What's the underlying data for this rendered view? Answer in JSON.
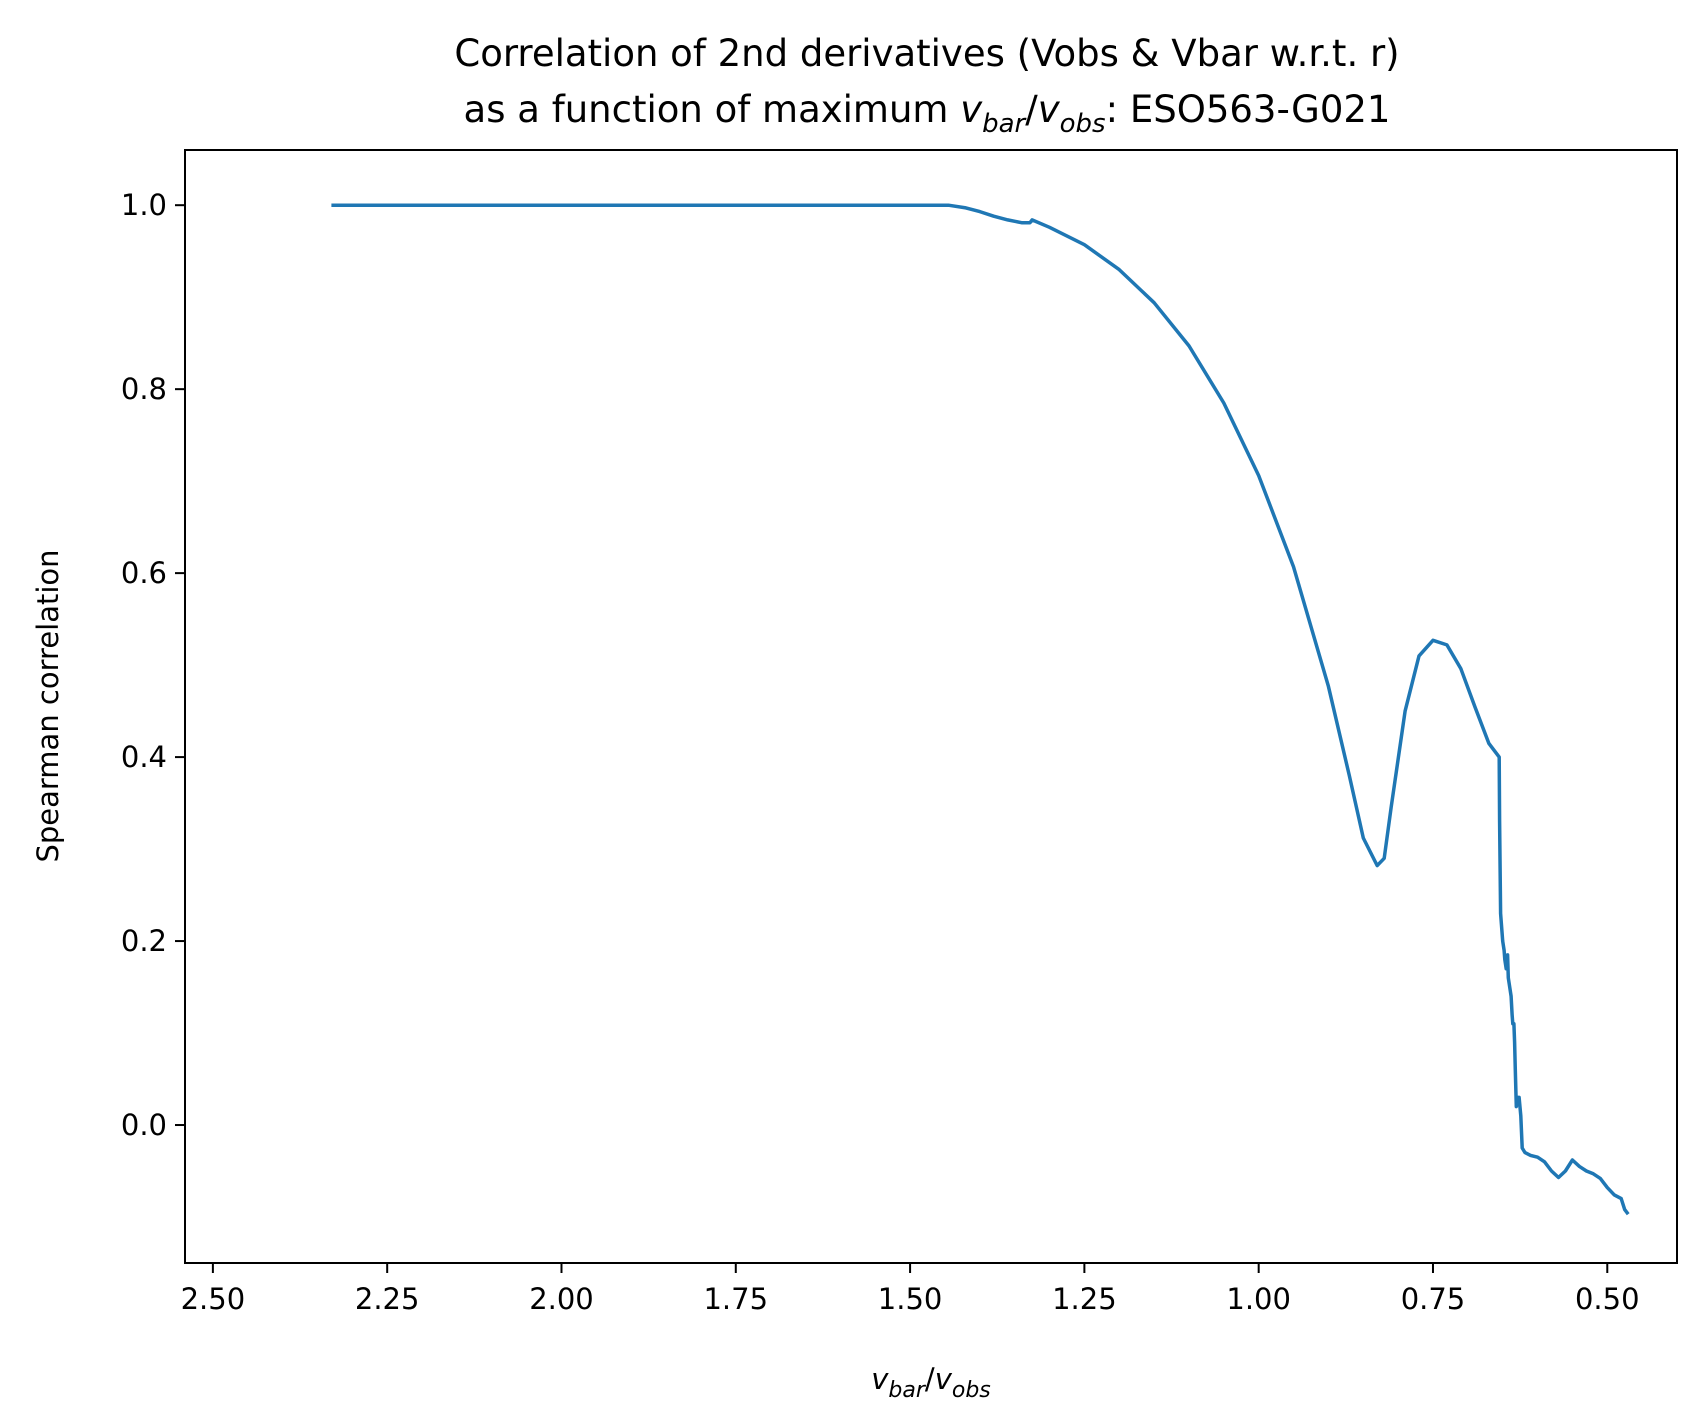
{
  "title": {
    "line1": "Correlation of 2nd derivatives (Vobs & Vbar w.r.t. r)",
    "line2_prefix": "as a function of maximum ",
    "line2_suffix": ": ESO563-G021"
  },
  "chart_data": {
    "type": "line",
    "title": "Correlation of 2nd derivatives (Vobs & Vbar w.r.t. r) as a function of maximum v_bar/v_obs: ESO563-G021",
    "xlabel": "v_bar/v_obs",
    "ylabel": "Spearman correlation",
    "xlim": [
      2.54,
      0.4
    ],
    "ylim": [
      -0.15,
      1.06
    ],
    "x_inverted": true,
    "grid": false,
    "xticks": [
      2.5,
      2.25,
      2.0,
      1.75,
      1.5,
      1.25,
      1.0,
      0.75,
      0.5
    ],
    "xtick_labels": [
      "2.50",
      "2.25",
      "2.00",
      "1.75",
      "1.50",
      "1.25",
      "1.00",
      "0.75",
      "0.50"
    ],
    "yticks": [
      0.0,
      0.2,
      0.4,
      0.6,
      0.8,
      1.0
    ],
    "ytick_labels": [
      "0.0",
      "0.2",
      "0.4",
      "0.6",
      "0.8",
      "1.0"
    ],
    "series": [
      {
        "color": "#1f77b4",
        "x": [
          2.33,
          2.0,
          1.75,
          1.5,
          1.445,
          1.42,
          1.4,
          1.38,
          1.36,
          1.34,
          1.328,
          1.325,
          1.3,
          1.25,
          1.2,
          1.15,
          1.1,
          1.05,
          1.0,
          0.95,
          0.9,
          0.87,
          0.85,
          0.83,
          0.82,
          0.81,
          0.79,
          0.77,
          0.75,
          0.73,
          0.71,
          0.69,
          0.67,
          0.655,
          0.6545,
          0.653,
          0.65,
          0.648,
          0.647,
          0.645,
          0.643,
          0.642,
          0.64,
          0.638,
          0.6365,
          0.6355,
          0.634,
          0.633,
          0.632,
          0.6305,
          0.629,
          0.6285,
          0.6265,
          0.624,
          0.622,
          0.618,
          0.61,
          0.6,
          0.59,
          0.58,
          0.57,
          0.56,
          0.55,
          0.54,
          0.53,
          0.52,
          0.51,
          0.5,
          0.49,
          0.48,
          0.475,
          0.47
        ],
        "y": [
          1.0,
          1.0,
          1.0,
          1.0,
          1.0,
          0.997,
          0.993,
          0.988,
          0.984,
          0.981,
          0.981,
          0.984,
          0.976,
          0.957,
          0.93,
          0.894,
          0.847,
          0.785,
          0.706,
          0.607,
          0.477,
          0.38,
          0.312,
          0.282,
          0.29,
          0.345,
          0.45,
          0.51,
          0.527,
          0.522,
          0.496,
          0.455,
          0.415,
          0.4,
          0.33,
          0.23,
          0.2,
          0.19,
          0.18,
          0.17,
          0.185,
          0.16,
          0.15,
          0.14,
          0.12,
          0.11,
          0.11,
          0.09,
          0.06,
          0.02,
          0.025,
          0.03,
          0.03,
          0.01,
          -0.025,
          -0.03,
          -0.033,
          -0.035,
          -0.04,
          -0.05,
          -0.057,
          -0.05,
          -0.038,
          -0.045,
          -0.05,
          -0.053,
          -0.058,
          -0.068,
          -0.076,
          -0.08,
          -0.092,
          -0.097
        ]
      }
    ]
  }
}
